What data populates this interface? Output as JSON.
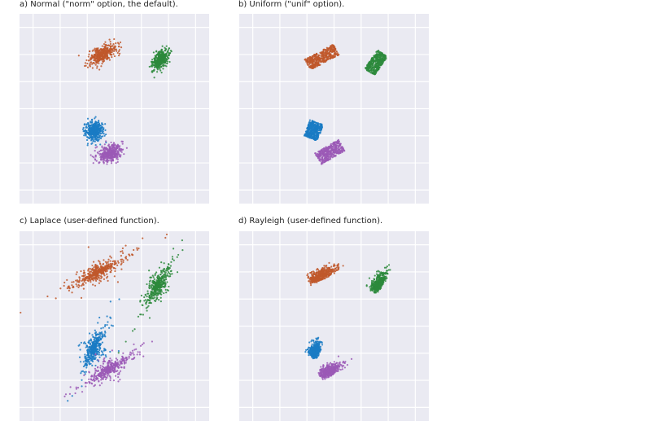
{
  "chart_data": [
    {
      "type": "scatter",
      "title": "a) Normal (\"norm\" option, the default).",
      "xlim": [
        0,
        7
      ],
      "ylim": [
        0,
        7
      ],
      "grid": true,
      "background": "#eaeaf2",
      "clusters": [
        {
          "color": "#c0582c",
          "center": [
            3.05,
            5.5
          ],
          "spread": [
            0.28,
            0.14
          ],
          "angle": 28,
          "dist": "normal",
          "n": 400
        },
        {
          "color": "#2d8a3c",
          "center": [
            5.2,
            5.3
          ],
          "spread": [
            0.22,
            0.12
          ],
          "angle": 55,
          "dist": "normal",
          "n": 400
        },
        {
          "color": "#1a7bc4",
          "center": [
            2.75,
            2.7
          ],
          "spread": [
            0.18,
            0.16
          ],
          "angle": 80,
          "dist": "normal",
          "n": 400
        },
        {
          "color": "#9b59b6",
          "center": [
            3.35,
            1.85
          ],
          "spread": [
            0.24,
            0.14
          ],
          "angle": 25,
          "dist": "normal",
          "n": 400
        }
      ]
    },
    {
      "type": "scatter",
      "title": "b) Uniform (\"unif\" option).",
      "xlim": [
        0,
        7
      ],
      "ylim": [
        0,
        7
      ],
      "grid": true,
      "background": "#eaeaf2",
      "clusters": [
        {
          "color": "#c0582c",
          "center": [
            3.05,
            5.4
          ],
          "spread": [
            0.6,
            0.22
          ],
          "angle": 28,
          "dist": "uniform",
          "n": 450
        },
        {
          "color": "#2d8a3c",
          "center": [
            5.05,
            5.2
          ],
          "spread": [
            0.42,
            0.22
          ],
          "angle": 55,
          "dist": "uniform",
          "n": 400
        },
        {
          "color": "#1a7bc4",
          "center": [
            2.75,
            2.7
          ],
          "spread": [
            0.32,
            0.26
          ],
          "angle": 70,
          "dist": "uniform",
          "n": 400
        },
        {
          "color": "#9b59b6",
          "center": [
            3.35,
            1.9
          ],
          "spread": [
            0.5,
            0.24
          ],
          "angle": 30,
          "dist": "uniform",
          "n": 400
        }
      ]
    },
    {
      "type": "scatter",
      "title": "c) Laplace (user-defined function).",
      "xlim": [
        0,
        7
      ],
      "ylim": [
        0,
        7
      ],
      "grid": true,
      "background": "#eaeaf2",
      "clusters": [
        {
          "color": "#c0582c",
          "center": [
            2.9,
            5.5
          ],
          "spread": [
            0.45,
            0.12
          ],
          "angle": 28,
          "dist": "laplace",
          "n": 450
        },
        {
          "color": "#2d8a3c",
          "center": [
            5.1,
            5.0
          ],
          "spread": [
            0.36,
            0.12
          ],
          "angle": 60,
          "dist": "laplace",
          "n": 400
        },
        {
          "color": "#1a7bc4",
          "center": [
            2.75,
            2.7
          ],
          "spread": [
            0.34,
            0.12
          ],
          "angle": 65,
          "dist": "laplace",
          "n": 400
        },
        {
          "color": "#9b59b6",
          "center": [
            3.3,
            1.9
          ],
          "spread": [
            0.42,
            0.12
          ],
          "angle": 32,
          "dist": "laplace",
          "n": 400
        }
      ]
    },
    {
      "type": "scatter",
      "title": "d) Rayleigh (user-defined function).",
      "xlim": [
        0,
        7
      ],
      "ylim": [
        0,
        7
      ],
      "grid": true,
      "background": "#eaeaf2",
      "clusters": [
        {
          "color": "#c0582c",
          "center": [
            3.05,
            5.4
          ],
          "spread": [
            0.4,
            0.14
          ],
          "angle": 25,
          "dist": "rayleigh",
          "n": 450
        },
        {
          "color": "#2d8a3c",
          "center": [
            5.15,
            5.1
          ],
          "spread": [
            0.3,
            0.14
          ],
          "angle": 55,
          "dist": "rayleigh",
          "n": 400
        },
        {
          "color": "#1a7bc4",
          "center": [
            2.8,
            2.6
          ],
          "spread": [
            0.22,
            0.14
          ],
          "angle": 70,
          "dist": "rayleigh",
          "n": 400
        },
        {
          "color": "#9b59b6",
          "center": [
            3.35,
            1.85
          ],
          "spread": [
            0.34,
            0.14
          ],
          "angle": 28,
          "dist": "rayleigh",
          "n": 400
        }
      ]
    }
  ]
}
